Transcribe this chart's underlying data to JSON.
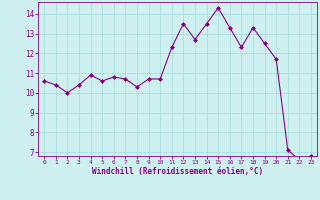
{
  "x": [
    0,
    1,
    2,
    3,
    4,
    5,
    6,
    7,
    8,
    9,
    10,
    11,
    12,
    13,
    14,
    15,
    16,
    17,
    18,
    19,
    20,
    21,
    22,
    23
  ],
  "y": [
    10.6,
    10.4,
    10.0,
    10.4,
    10.9,
    10.6,
    10.8,
    10.7,
    10.3,
    10.7,
    10.7,
    12.3,
    13.5,
    12.7,
    13.5,
    14.3,
    13.3,
    12.3,
    13.3,
    12.5,
    11.7,
    7.1,
    6.6,
    6.8
  ],
  "line_color": "#880088",
  "marker": "D",
  "marker_size": 2.0,
  "bg_color": "#cff0f0",
  "grid_color": "#aadddd",
  "xlabel": "Windchill (Refroidissement éolien,°C)",
  "xlabel_color": "#880088",
  "tick_color": "#880088",
  "ylim": [
    6.8,
    14.6
  ],
  "xlim": [
    -0.5,
    23.5
  ],
  "yticks": [
    7,
    8,
    9,
    10,
    11,
    12,
    13,
    14
  ],
  "xticks": [
    0,
    1,
    2,
    3,
    4,
    5,
    6,
    7,
    8,
    9,
    10,
    11,
    12,
    13,
    14,
    15,
    16,
    17,
    18,
    19,
    20,
    21,
    22,
    23
  ],
  "spine_color": "#880088"
}
